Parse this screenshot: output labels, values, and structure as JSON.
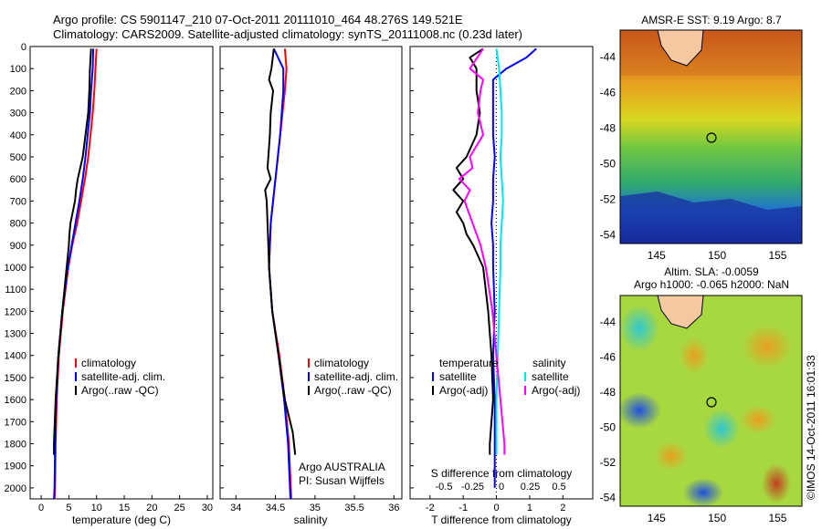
{
  "title_lines": [
    "Argo profile: CS 5901147_210 07-Oct-2011 20111010_464 48.276S 149.521E",
    "Climatology: CARS2009. Satellite-adjusted climatology: synTS_20111008.nc (0.23d later)"
  ],
  "depth_ticks": [
    0,
    100,
    200,
    300,
    400,
    500,
    600,
    700,
    800,
    900,
    1000,
    1100,
    1200,
    1300,
    1400,
    1500,
    1600,
    1700,
    1800,
    1900,
    2000
  ],
  "colors": {
    "climatology": "#ff0000",
    "satellite": "#0000ff",
    "argo": "#000000",
    "salinity_sat": "#00e5ee",
    "salinity_argo": "#ff00ff"
  },
  "chart_data": [
    {
      "type": "line",
      "xlabel": "temperature (deg C)",
      "xlim": [
        -2,
        31
      ],
      "ylim": [
        2050,
        0
      ],
      "xticks": [
        0,
        5,
        10,
        15,
        20,
        25,
        30
      ],
      "legend": [
        "climatology",
        "satellite-adj. clim.",
        "Argo(..raw -QC)"
      ],
      "series": [
        {
          "name": "climatology",
          "depth": [
            10,
            100,
            200,
            300,
            400,
            500,
            600,
            700,
            800,
            900,
            1000,
            1200,
            1400,
            1600,
            1800,
            2000,
            2050
          ],
          "values": [
            10.0,
            9.8,
            9.6,
            9.3,
            8.9,
            8.5,
            7.9,
            7.2,
            6.5,
            5.6,
            4.9,
            3.9,
            3.2,
            2.8,
            2.6,
            2.5,
            2.4
          ]
        },
        {
          "name": "satellite-adj. clim.",
          "depth": [
            10,
            100,
            200,
            300,
            400,
            500,
            600,
            700,
            800,
            900,
            1000,
            1200,
            1400,
            1600,
            1800,
            2000,
            2050
          ],
          "values": [
            9.4,
            9.3,
            9.0,
            8.8,
            8.4,
            8.0,
            7.5,
            6.9,
            6.2,
            5.5,
            4.8,
            3.8,
            3.1,
            2.7,
            2.5,
            2.4,
            2.3
          ]
        },
        {
          "name": "Argo(..raw -QC)",
          "depth": [
            10,
            100,
            200,
            300,
            400,
            500,
            600,
            650,
            700,
            800,
            850,
            900,
            1000,
            1200,
            1400,
            1600,
            1800,
            1850
          ],
          "values": [
            9.0,
            8.8,
            8.7,
            8.5,
            8.0,
            7.5,
            6.6,
            6.3,
            6.1,
            5.3,
            5.1,
            5.0,
            4.6,
            3.8,
            3.1,
            2.6,
            2.3,
            2.3
          ]
        }
      ]
    },
    {
      "type": "line",
      "xlabel": "salinity",
      "xlim": [
        33.8,
        36.1
      ],
      "ylim": [
        2050,
        0
      ],
      "xticks": [
        34,
        34.5,
        35,
        35.5,
        36
      ],
      "legend": [
        "climatology",
        "satellite-adj. clim.",
        "Argo(..raw -QC)"
      ],
      "annotations": [
        "Argo AUSTRALIA",
        "PI: Susan Wijffels"
      ],
      "series": [
        {
          "name": "climatology",
          "depth": [
            10,
            100,
            200,
            400,
            600,
            800,
            1000,
            1200,
            1400,
            1600,
            1800,
            2050
          ],
          "values": [
            34.62,
            34.64,
            34.62,
            34.56,
            34.5,
            34.44,
            34.42,
            34.46,
            34.55,
            34.62,
            34.67,
            34.7
          ]
        },
        {
          "name": "satellite-adj. clim.",
          "depth": [
            10,
            100,
            200,
            400,
            600,
            800,
            1000,
            1200,
            1400,
            1600,
            1800,
            2050
          ],
          "values": [
            34.48,
            34.6,
            34.6,
            34.56,
            34.5,
            34.44,
            34.42,
            34.46,
            34.54,
            34.61,
            34.66,
            34.69
          ]
        },
        {
          "name": "Argo(..raw -QC)",
          "depth": [
            10,
            100,
            150,
            200,
            300,
            400,
            500,
            550,
            600,
            650,
            700,
            800,
            900,
            1000,
            1200,
            1400,
            1600,
            1750,
            1850
          ],
          "values": [
            34.48,
            34.45,
            34.42,
            34.47,
            34.44,
            34.43,
            34.41,
            34.4,
            34.44,
            34.37,
            34.39,
            34.4,
            34.41,
            34.42,
            34.46,
            34.54,
            34.62,
            34.72,
            34.75
          ]
        }
      ]
    },
    {
      "type": "line",
      "xlabel": "T difference from climatology",
      "xlabel2": "S difference from climatology",
      "xlim": [
        -2.6,
        2.9
      ],
      "ylim": [
        2050,
        0
      ],
      "xticks": [
        -2,
        -1,
        0,
        1,
        2
      ],
      "s_ticks": [
        "-0.5",
        "-0.25",
        "0",
        "0.25",
        "0.5"
      ],
      "legend_titles": [
        "temperature",
        "salinity"
      ],
      "legend": [
        "satellite",
        "Argo(-adj)",
        "satellite",
        "Argo(-adj)"
      ],
      "series": [
        {
          "name": "satellite",
          "depth": [
            10,
            50,
            100,
            150,
            200,
            300,
            400,
            500,
            600,
            700,
            800,
            900,
            1000,
            1200,
            1400,
            1600,
            1800,
            2000
          ],
          "values": [
            1.2,
            0.9,
            0.3,
            -0.1,
            -0.1,
            -0.1,
            -0.1,
            -0.05,
            -0.1,
            -0.1,
            -0.15,
            -0.1,
            -0.1,
            -0.05,
            -0.1,
            -0.05,
            -0.05,
            -0.05
          ]
        },
        {
          "name": "Argo(-adj)",
          "depth": [
            10,
            50,
            100,
            200,
            300,
            400,
            500,
            550,
            600,
            650,
            700,
            750,
            800,
            850,
            900,
            1000,
            1200,
            1400,
            1600,
            1800,
            1850
          ],
          "values": [
            -0.4,
            -0.8,
            -0.6,
            -0.6,
            -0.5,
            -0.6,
            -0.9,
            -1.2,
            -1.0,
            -1.3,
            -1.0,
            -1.2,
            -1.0,
            -0.9,
            -0.7,
            -0.4,
            -0.25,
            -0.15,
            -0.1,
            -0.2,
            -0.2
          ]
        },
        {
          "name": "satellite",
          "depth": [
            10,
            100,
            200,
            300,
            400,
            500,
            600,
            700,
            800,
            900,
            1000,
            1200,
            1400,
            1600,
            1800,
            1850
          ],
          "values": [
            0.0,
            0.02,
            0.03,
            0.04,
            0.04,
            0.03,
            0.04,
            0.05,
            0.04,
            0.03,
            0.03,
            0.02,
            0.01,
            0.0,
            0.0,
            0.0
          ]
        },
        {
          "name": "Argo(-adj)",
          "depth": [
            10,
            100,
            150,
            200,
            300,
            400,
            500,
            550,
            600,
            650,
            700,
            800,
            900,
            1000,
            1200,
            1400,
            1600,
            1800,
            1850
          ],
          "values": [
            -0.1,
            -0.2,
            -0.1,
            -0.12,
            -0.14,
            -0.1,
            -0.2,
            -0.18,
            -0.28,
            -0.2,
            -0.24,
            -0.18,
            -0.12,
            -0.08,
            -0.03,
            0.0,
            0.03,
            0.06,
            0.06
          ]
        }
      ]
    },
    {
      "type": "heatmap",
      "title": "AMSR-E SST: 9.19 Argo: 8.7",
      "xticks": [
        145,
        150,
        155
      ],
      "yticks": [
        -44,
        -46,
        -48,
        -50,
        -52,
        -54
      ],
      "xlim": [
        142,
        157
      ],
      "ylim": [
        -54.5,
        -42.5
      ],
      "marker": {
        "lon": 149.5,
        "lat": -48.3
      }
    },
    {
      "type": "heatmap",
      "title_lines": [
        "Altim. SLA: -0.0059",
        "Argo h1000: -0.065 h2000: NaN"
      ],
      "xticks": [
        145,
        150,
        155
      ],
      "yticks": [
        -44,
        -46,
        -48,
        -50,
        -52,
        -54
      ],
      "xlim": [
        142,
        157
      ],
      "ylim": [
        -54.5,
        -42.5
      ],
      "marker": {
        "lon": 149.5,
        "lat": -48.3
      }
    }
  ],
  "watermark": "©IMOS 14-Oct-2011 16:01:33"
}
